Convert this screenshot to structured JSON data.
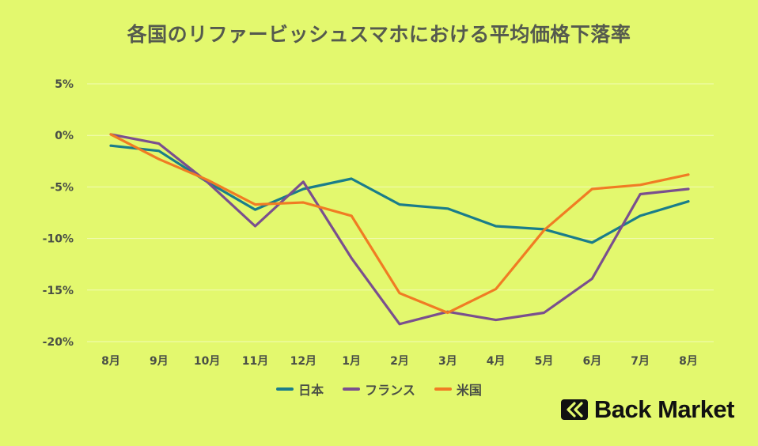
{
  "chart_data": {
    "type": "line",
    "title": "各国のリファービッシュスマホにおける平均価格下落率",
    "categories": [
      "8月",
      "9月",
      "10月",
      "11月",
      "12月",
      "1月",
      "2月",
      "3月",
      "4月",
      "5月",
      "6月",
      "7月",
      "8月"
    ],
    "ylim": [
      -20,
      5
    ],
    "yticks": [
      "5%",
      "0%",
      "-5%",
      "-10%",
      "-15%",
      "-20%"
    ],
    "ytick_values": [
      5,
      0,
      -5,
      -10,
      -15,
      -20
    ],
    "grid": true,
    "legend": "bottom",
    "series": [
      {
        "name": "日本",
        "color": "#1a7d8a",
        "values": [
          -1.0,
          -1.5,
          -4.5,
          -7.2,
          -5.2,
          -4.2,
          -6.7,
          -7.1,
          -8.8,
          -9.1,
          -10.4,
          -7.8,
          -6.4
        ]
      },
      {
        "name": "フランス",
        "color": "#7a4f8e",
        "values": [
          0.1,
          -0.8,
          -4.5,
          -8.8,
          -4.5,
          -11.9,
          -18.3,
          -17.1,
          -17.9,
          -17.2,
          -13.9,
          -5.7,
          -5.2
        ]
      },
      {
        "name": "米国",
        "color": "#f07c23",
        "values": [
          0.1,
          -2.3,
          -4.3,
          -6.7,
          -6.5,
          -7.8,
          -15.3,
          -17.2,
          -14.9,
          -9.2,
          -5.2,
          -4.8,
          -3.8
        ]
      }
    ]
  },
  "logo": {
    "text": "Back Market"
  }
}
